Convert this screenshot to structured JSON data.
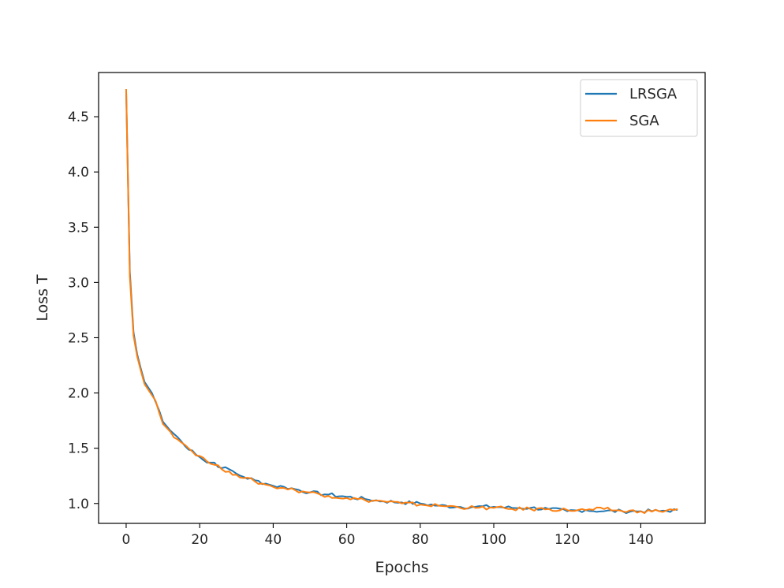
{
  "chart_data": {
    "type": "line",
    "title": "",
    "xlabel": "Epochs",
    "ylabel": "Loss T",
    "xlim": [
      -7.5,
      157.5
    ],
    "ylim": [
      0.82,
      4.9
    ],
    "xticks": [
      0,
      20,
      40,
      60,
      80,
      100,
      120,
      140
    ],
    "yticks": [
      1.0,
      1.5,
      2.0,
      2.5,
      3.0,
      3.5,
      4.0,
      4.5
    ],
    "legend": {
      "placement": "top-right"
    },
    "grid": false,
    "series": [
      {
        "name": "LRSGA",
        "color": "#1f77b4",
        "points": [
          [
            0,
            4.74
          ],
          [
            1,
            3.1
          ],
          [
            2,
            2.55
          ],
          [
            3,
            2.35
          ],
          [
            4,
            2.22
          ],
          [
            5,
            2.1
          ],
          [
            6,
            2.05
          ],
          [
            7,
            2.0
          ],
          [
            8,
            1.92
          ],
          [
            9,
            1.84
          ],
          [
            10,
            1.74
          ],
          [
            12,
            1.66
          ],
          [
            14,
            1.6
          ],
          [
            16,
            1.52
          ],
          [
            18,
            1.48
          ],
          [
            20,
            1.42
          ],
          [
            22,
            1.37
          ],
          [
            24,
            1.37
          ],
          [
            26,
            1.32
          ],
          [
            28,
            1.31
          ],
          [
            30,
            1.27
          ],
          [
            32,
            1.24
          ],
          [
            35,
            1.21
          ],
          [
            38,
            1.18
          ],
          [
            40,
            1.16
          ],
          [
            43,
            1.15
          ],
          [
            46,
            1.13
          ],
          [
            50,
            1.1
          ],
          [
            55,
            1.08
          ],
          [
            60,
            1.06
          ],
          [
            65,
            1.04
          ],
          [
            70,
            1.02
          ],
          [
            75,
            1.01
          ],
          [
            80,
            1.0
          ],
          [
            85,
            0.98
          ],
          [
            90,
            0.97
          ],
          [
            95,
            0.97
          ],
          [
            100,
            0.97
          ],
          [
            105,
            0.96
          ],
          [
            110,
            0.96
          ],
          [
            115,
            0.95
          ],
          [
            120,
            0.93
          ],
          [
            125,
            0.94
          ],
          [
            130,
            0.93
          ],
          [
            135,
            0.93
          ],
          [
            140,
            0.93
          ],
          [
            145,
            0.93
          ],
          [
            150,
            0.94
          ]
        ]
      },
      {
        "name": "SGA",
        "color": "#ff7f0e",
        "points": [
          [
            0,
            4.75
          ],
          [
            1,
            3.05
          ],
          [
            2,
            2.52
          ],
          [
            3,
            2.33
          ],
          [
            4,
            2.2
          ],
          [
            5,
            2.08
          ],
          [
            6,
            2.03
          ],
          [
            7,
            1.98
          ],
          [
            8,
            1.93
          ],
          [
            9,
            1.82
          ],
          [
            10,
            1.72
          ],
          [
            12,
            1.65
          ],
          [
            14,
            1.58
          ],
          [
            16,
            1.53
          ],
          [
            18,
            1.47
          ],
          [
            20,
            1.43
          ],
          [
            22,
            1.38
          ],
          [
            24,
            1.35
          ],
          [
            26,
            1.31
          ],
          [
            28,
            1.29
          ],
          [
            30,
            1.26
          ],
          [
            32,
            1.23
          ],
          [
            35,
            1.2
          ],
          [
            38,
            1.17
          ],
          [
            40,
            1.15
          ],
          [
            43,
            1.14
          ],
          [
            46,
            1.12
          ],
          [
            50,
            1.1
          ],
          [
            55,
            1.07
          ],
          [
            60,
            1.05
          ],
          [
            65,
            1.03
          ],
          [
            70,
            1.02
          ],
          [
            75,
            1.0
          ],
          [
            80,
            0.99
          ],
          [
            85,
            0.98
          ],
          [
            90,
            0.97
          ],
          [
            95,
            0.96
          ],
          [
            100,
            0.96
          ],
          [
            105,
            0.95
          ],
          [
            110,
            0.95
          ],
          [
            115,
            0.95
          ],
          [
            120,
            0.94
          ],
          [
            125,
            0.94
          ],
          [
            130,
            0.95
          ],
          [
            135,
            0.93
          ],
          [
            140,
            0.93
          ],
          [
            145,
            0.93
          ],
          [
            150,
            0.95
          ]
        ]
      }
    ]
  }
}
